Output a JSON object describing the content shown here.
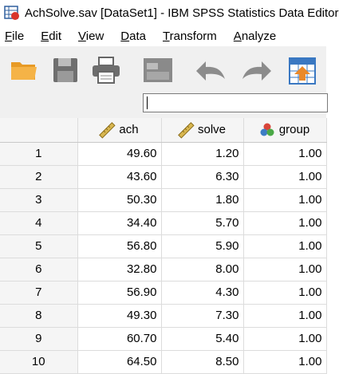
{
  "window": {
    "title": "AchSolve.sav [DataSet1] - IBM SPSS Statistics Data Editor"
  },
  "menubar": {
    "items": [
      {
        "mnemonic": "F",
        "rest": "ile"
      },
      {
        "mnemonic": "E",
        "rest": "dit"
      },
      {
        "mnemonic": "V",
        "rest": "iew"
      },
      {
        "mnemonic": "D",
        "rest": "ata"
      },
      {
        "mnemonic": "T",
        "rest": "ransform"
      },
      {
        "mnemonic": "A",
        "rest": "nalyze"
      }
    ]
  },
  "toolbar": {
    "icons": [
      "open-folder-icon",
      "save-icon",
      "print-icon",
      "recall-dialog-icon",
      "undo-icon",
      "redo-icon",
      "go-to-case-icon"
    ]
  },
  "cell_editor": {
    "value": ""
  },
  "grid": {
    "columns": [
      {
        "name": "ach",
        "icon": "scale-ruler-icon"
      },
      {
        "name": "solve",
        "icon": "scale-ruler-icon"
      },
      {
        "name": "group",
        "icon": "nominal-circles-icon"
      }
    ],
    "rows": [
      {
        "num": "1",
        "ach": "49.60",
        "solve": "1.20",
        "group": "1.00"
      },
      {
        "num": "2",
        "ach": "43.60",
        "solve": "6.30",
        "group": "1.00"
      },
      {
        "num": "3",
        "ach": "50.30",
        "solve": "1.80",
        "group": "1.00"
      },
      {
        "num": "4",
        "ach": "34.40",
        "solve": "5.70",
        "group": "1.00"
      },
      {
        "num": "5",
        "ach": "56.80",
        "solve": "5.90",
        "group": "1.00"
      },
      {
        "num": "6",
        "ach": "32.80",
        "solve": "8.00",
        "group": "1.00"
      },
      {
        "num": "7",
        "ach": "56.90",
        "solve": "4.30",
        "group": "1.00"
      },
      {
        "num": "8",
        "ach": "49.30",
        "solve": "7.30",
        "group": "1.00"
      },
      {
        "num": "9",
        "ach": "60.70",
        "solve": "5.40",
        "group": "1.00"
      },
      {
        "num": "10",
        "ach": "64.50",
        "solve": "8.50",
        "group": "1.00"
      }
    ]
  },
  "colors": {
    "toolbar_bg": "#f0f0f0",
    "header_bg": "#f5f5f5",
    "grid_line": "#dcdcdc",
    "folder": "#f2a93b",
    "ruler": "#d4b24a"
  }
}
